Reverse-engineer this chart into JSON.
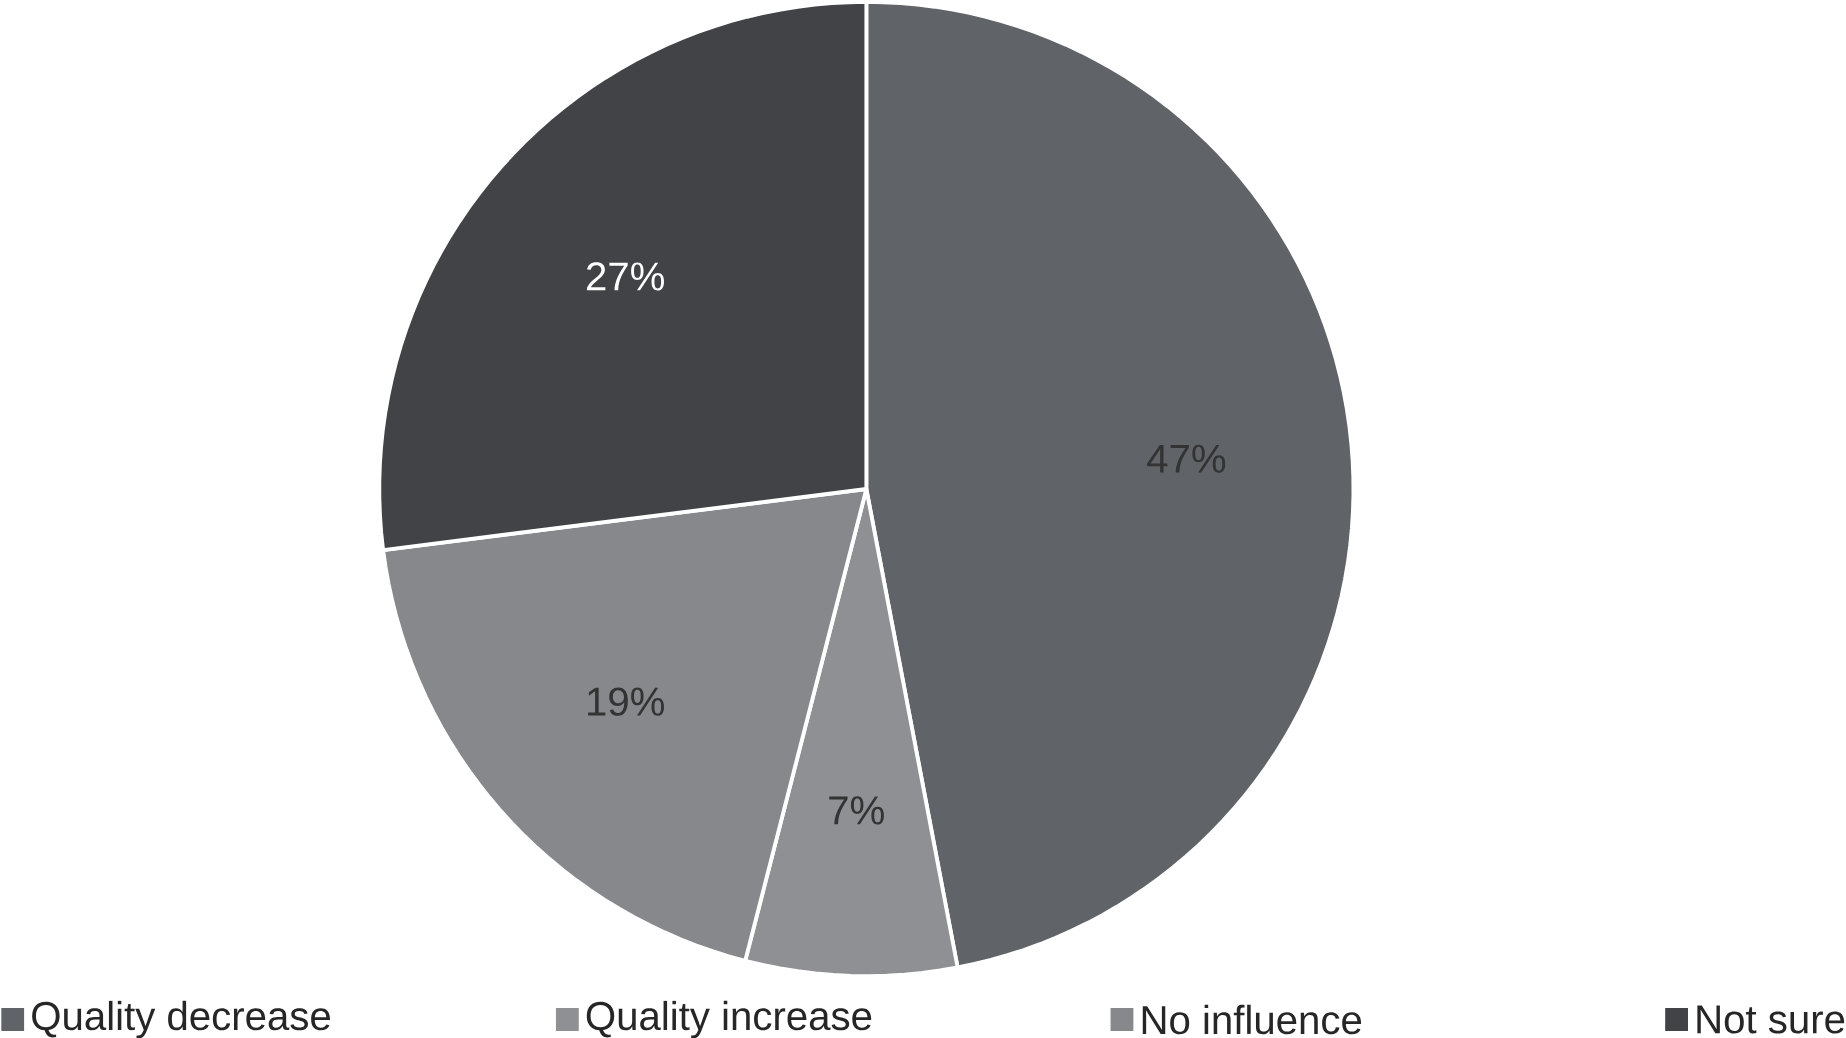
{
  "chart_data": {
    "type": "pie",
    "categories": [
      "Quality decrease",
      "Quality increase",
      "No influence",
      "Not sure"
    ],
    "values": [
      47,
      7,
      19,
      27
    ],
    "value_labels": [
      "47%",
      "7%",
      "19%",
      "27%"
    ],
    "colors": [
      "#606367",
      "#8e9094",
      "#86888c",
      "#414347"
    ],
    "legend": "bottom"
  }
}
